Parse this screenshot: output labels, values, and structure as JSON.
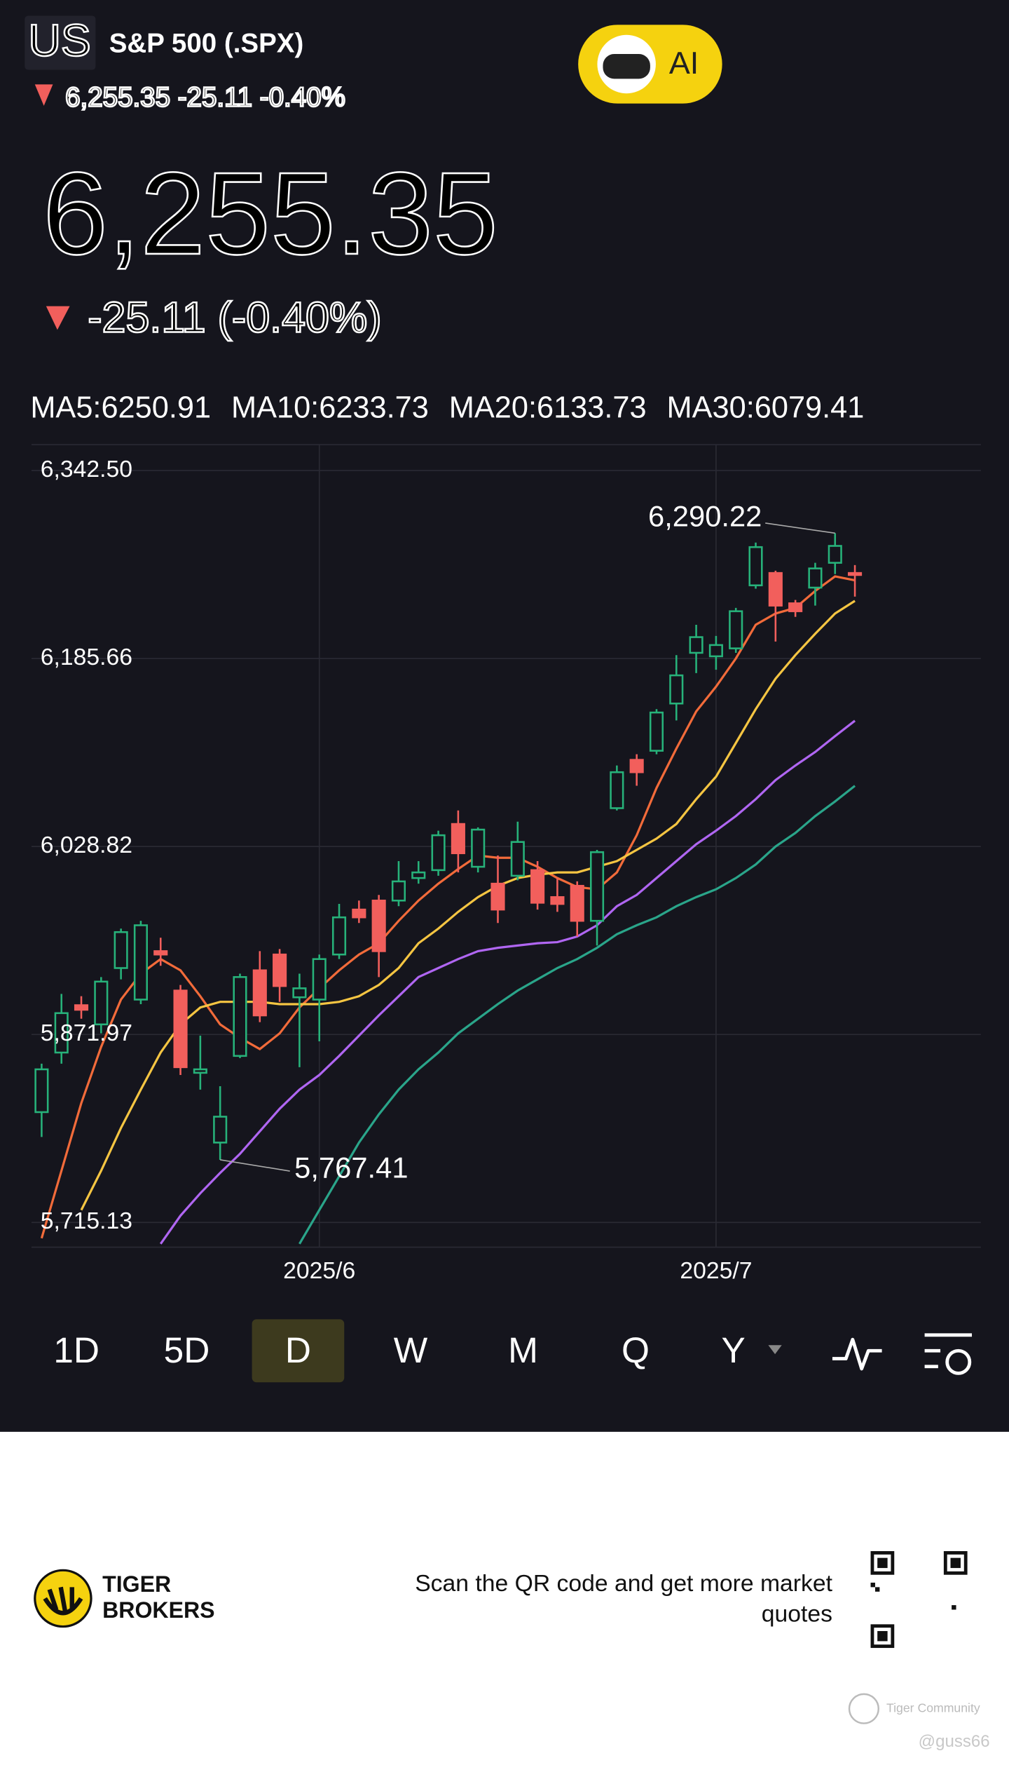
{
  "header": {
    "logo": "US",
    "symbol": "S&P 500 (.SPX)",
    "quote_line": "6,255.35 -25.11 -0.40%",
    "ai_button": "AI",
    "price": "6,255.35",
    "change": "-25.11 (-0.40%)"
  },
  "chart_data": {
    "type": "candlestick",
    "categories": [
      null,
      null,
      null,
      null,
      null,
      null,
      null,
      null,
      null,
      null,
      null,
      null,
      null,
      null,
      "2025/6",
      null,
      null,
      null,
      null,
      null,
      null,
      null,
      null,
      null,
      null,
      null,
      null,
      null,
      null,
      null,
      null,
      null,
      null,
      null,
      "2025/7",
      null,
      null,
      null,
      null,
      null,
      null,
      null
    ],
    "open": [
      5807.2,
      5856.9,
      5896.4,
      5880.4,
      5927.4,
      5901.1,
      5941.5,
      5908.6,
      5840.0,
      5781.8,
      5854.1,
      5925.5,
      5938.7,
      5903.0,
      5901.1,
      5938.7,
      5976.2,
      5983.7,
      5983.7,
      6002.5,
      6009.1,
      6047.6,
      6011.9,
      5997.8,
      6004.4,
      6009.1,
      5986.6,
      5996.0,
      5966.8,
      6060.8,
      6101.1,
      6108.7,
      6148.1,
      6190.4,
      6187.5,
      6194.1,
      6246.7,
      6257.0,
      6231.7,
      6244.8,
      6265.5,
      6257.0
    ],
    "high": [
      5847.6,
      5905.8,
      5903.9,
      5919.9,
      5960.3,
      5966.8,
      5952.7,
      5913.3,
      5871.0,
      5828.8,
      5922.7,
      5941.5,
      5943.3,
      5922.7,
      5938.7,
      5980.9,
      5983.7,
      5988.4,
      6016.6,
      6016.6,
      6042.0,
      6058.9,
      6044.8,
      6021.3,
      6049.5,
      6016.6,
      6002.5,
      5999.7,
      6026.0,
      6096.4,
      6105.8,
      6143.4,
      6188.5,
      6213.8,
      6204.5,
      6227.9,
      6282.4,
      6258.9,
      6234.5,
      6265.5,
      6290.22,
      6263.6
    ],
    "low": [
      5786.5,
      5847.6,
      5885.1,
      5872.9,
      5918.0,
      5897.3,
      5929.3,
      5838.2,
      5826.0,
      5767.41,
      5852.3,
      5882.3,
      5899.2,
      5844.7,
      5866.3,
      5934.9,
      5965.0,
      5919.9,
      5979.0,
      5997.8,
      6004.4,
      6007.2,
      6007.2,
      5965.0,
      6000.6,
      5976.2,
      5974.3,
      5953.7,
      5946.2,
      6058.9,
      6079.5,
      6105.8,
      6134.0,
      6173.5,
      6176.3,
      6190.4,
      6243.9,
      6199.8,
      6220.4,
      6229.8,
      6256.1,
      6237.3
    ],
    "close": [
      5842.9,
      5889.8,
      5892.6,
      5916.1,
      5957.4,
      5963.1,
      5938.7,
      5844.7,
      5842.9,
      5803.4,
      5919.9,
      5887.9,
      5912.4,
      5910.5,
      5934.9,
      5969.7,
      5969.7,
      5941.5,
      5999.7,
      6007.2,
      6038.2,
      6023.2,
      6042.9,
      5976.2,
      6032.6,
      5981.9,
      5980.9,
      5966.8,
      6024.1,
      6090.8,
      6090.8,
      6140.6,
      6171.6,
      6203.5,
      6196.9,
      6225.1,
      6278.6,
      6229.8,
      6225.1,
      6260.8,
      6279.6,
      6255.35
    ],
    "up_color": "#27b27a",
    "down_color": "#f25f5c",
    "series": [
      {
        "name": "MA5:6250.91",
        "color": "#f26b3a",
        "values": [
          5702.0,
          5758.3,
          5814.7,
          5861.6,
          5901.1,
          5922.7,
          5934.9,
          5925.5,
          5903.9,
          5880.4,
          5869.2,
          5859.8,
          5872.9,
          5894.5,
          5910.5,
          5925.5,
          5938.7,
          5948.1,
          5966.8,
          5983.7,
          5997.8,
          6010.0,
          6021.3,
          6019.4,
          6019.4,
          6011.9,
          6002.5,
          5995.0,
          5993.1,
          6007.2,
          6038.2,
          6077.7,
          6110.5,
          6141.5,
          6162.2,
          6185.7,
          6213.8,
          6223.2,
          6227.9,
          6242.0,
          6254.2,
          6250.91
        ]
      },
      {
        "name": "MA10:6233.73",
        "color": "#f5c542",
        "values": [
          null,
          null,
          5725.5,
          5758.3,
          5794.0,
          5826.0,
          5856.9,
          5880.4,
          5894.5,
          5899.2,
          5899.2,
          5899.2,
          5897.3,
          5897.3,
          5897.3,
          5899.2,
          5903.9,
          5913.3,
          5927.4,
          5948.1,
          5960.3,
          5974.3,
          5986.6,
          5996.0,
          6002.5,
          6005.3,
          6007.2,
          6007.2,
          6011.9,
          6016.6,
          6026.0,
          6035.4,
          6047.6,
          6068.3,
          6087.1,
          6115.2,
          6143.4,
          6168.8,
          6188.5,
          6206.3,
          6223.2,
          6233.73
        ]
      },
      {
        "name": "MA20:6133.73",
        "color": "#b066f2",
        "values": [
          null,
          null,
          null,
          null,
          null,
          null,
          5697.3,
          5720.8,
          5739.5,
          5756.5,
          5772.4,
          5791.2,
          5810.0,
          5826.0,
          5838.2,
          5854.1,
          5871.0,
          5887.9,
          5903.9,
          5919.9,
          5927.4,
          5934.9,
          5941.5,
          5944.3,
          5946.2,
          5948.1,
          5949.0,
          5953.7,
          5963.1,
          5979.0,
          5988.4,
          6002.5,
          6016.6,
          6030.7,
          6042.0,
          6054.2,
          6068.3,
          6084.2,
          6096.4,
          6107.7,
          6120.9,
          6133.73
        ]
      },
      {
        "name": "MA30:6079.41",
        "color": "#2aa58a",
        "values": [
          null,
          null,
          null,
          null,
          null,
          null,
          null,
          null,
          null,
          null,
          null,
          null,
          null,
          5697.3,
          5725.5,
          5753.6,
          5781.8,
          5805.3,
          5826.0,
          5842.9,
          5856.9,
          5872.9,
          5885.1,
          5897.3,
          5908.6,
          5918.0,
          5927.4,
          5934.9,
          5944.3,
          5955.6,
          5963.1,
          5969.7,
          5979.0,
          5986.6,
          5993.1,
          6002.5,
          6013.8,
          6028.8,
          6040.1,
          6054.2,
          6066.4,
          6079.41
        ]
      }
    ],
    "ylim": [
      5694.5,
      6364.1
    ],
    "yticks": [
      {
        "value": 6342.5,
        "label": "6,342.50"
      },
      {
        "value": 6185.66,
        "label": "6,185.66"
      },
      {
        "value": 6028.82,
        "label": "6,028.82"
      },
      {
        "value": 5871.97,
        "label": "5,871.97"
      },
      {
        "value": 5715.13,
        "label": "5,715.13"
      }
    ],
    "grid": true,
    "annotations": [
      {
        "text": "6,290.22",
        "value": 6290.22,
        "kind": "high"
      },
      {
        "text": "5,767.41",
        "value": 5767.41,
        "kind": "low"
      }
    ]
  },
  "tabs": [
    "1D",
    "5D",
    "D",
    "W",
    "M",
    "Q",
    "Y"
  ],
  "footer": {
    "brand": [
      "TIGER",
      "BROKERS"
    ],
    "qr_text": [
      "Scan the QR code and get more market",
      "quotes"
    ],
    "watermark": "Tiger Community",
    "user": "@guss66"
  }
}
